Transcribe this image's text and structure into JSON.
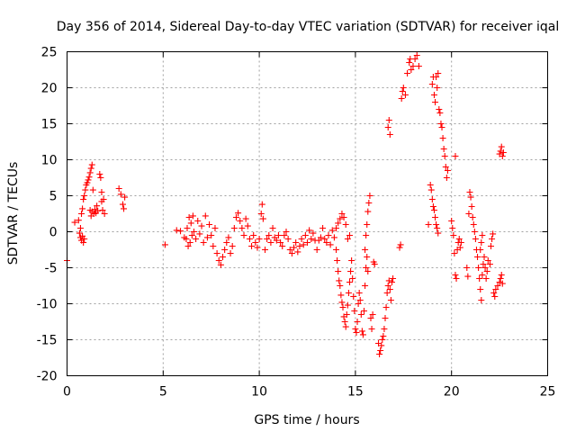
{
  "chart_data": {
    "type": "scatter",
    "title": "Day 356 of 2014, Sidereal Day-to-day VTEC variation (SDTVAR) for receiver iqal",
    "xlabel": "GPS time / hours",
    "ylabel": "SDTVAR / TECUs",
    "xlim": [
      0,
      25
    ],
    "ylim": [
      -20,
      25
    ],
    "x_ticks": [
      0,
      5,
      10,
      15,
      20,
      25
    ],
    "x_tick_labels": [
      "0",
      "5",
      "10",
      "15",
      "20",
      "25"
    ],
    "y_ticks": [
      -20,
      -15,
      -10,
      -5,
      0,
      5,
      10,
      15,
      20,
      25
    ],
    "y_tick_labels": [
      "-20",
      "-15",
      "-10",
      "-5",
      "0",
      "5",
      "10",
      "15",
      "20",
      "25"
    ],
    "grid": true,
    "marker": "+",
    "color": "#ff0000",
    "series": [
      {
        "name": "SDTVAR",
        "points": [
          [
            0.0,
            -4.0
          ],
          [
            0.4,
            1.3
          ],
          [
            0.6,
            1.6
          ],
          [
            0.65,
            -0.2
          ],
          [
            0.7,
            -0.8
          ],
          [
            0.75,
            -1.2
          ],
          [
            0.8,
            -0.6
          ],
          [
            0.85,
            -1.5
          ],
          [
            0.9,
            -1.0
          ],
          [
            0.7,
            0.5
          ],
          [
            0.75,
            2.5
          ],
          [
            0.8,
            3.2
          ],
          [
            0.85,
            4.5
          ],
          [
            0.9,
            5.0
          ],
          [
            0.95,
            5.8
          ],
          [
            1.0,
            6.5
          ],
          [
            1.05,
            6.8
          ],
          [
            1.1,
            7.2
          ],
          [
            1.15,
            7.6
          ],
          [
            1.2,
            8.2
          ],
          [
            1.25,
            8.8
          ],
          [
            1.3,
            9.3
          ],
          [
            1.2,
            3.0
          ],
          [
            1.25,
            2.2
          ],
          [
            1.3,
            2.8
          ],
          [
            1.35,
            5.8
          ],
          [
            1.4,
            2.5
          ],
          [
            1.45,
            3.1
          ],
          [
            1.5,
            2.6
          ],
          [
            1.55,
            3.6
          ],
          [
            1.6,
            2.9
          ],
          [
            1.7,
            8.0
          ],
          [
            1.75,
            7.5
          ],
          [
            1.8,
            5.5
          ],
          [
            1.8,
            4.2
          ],
          [
            1.85,
            3.0
          ],
          [
            1.9,
            4.5
          ],
          [
            1.95,
            2.5
          ],
          [
            2.7,
            6.0
          ],
          [
            2.8,
            5.2
          ],
          [
            2.9,
            3.8
          ],
          [
            2.95,
            3.2
          ],
          [
            3.0,
            4.8
          ],
          [
            5.1,
            -1.8
          ],
          [
            5.7,
            0.2
          ],
          [
            5.9,
            0.1
          ],
          [
            6.1,
            -0.8
          ],
          [
            6.2,
            -1.0
          ],
          [
            6.25,
            0.5
          ],
          [
            6.3,
            -2.0
          ],
          [
            6.35,
            2.0
          ],
          [
            6.4,
            -1.5
          ],
          [
            6.45,
            1.2
          ],
          [
            6.5,
            -0.5
          ],
          [
            6.55,
            2.2
          ],
          [
            6.6,
            0.0
          ],
          [
            6.7,
            -1.0
          ],
          [
            6.8,
            1.5
          ],
          [
            6.9,
            -0.3
          ],
          [
            7.0,
            0.8
          ],
          [
            7.1,
            -1.5
          ],
          [
            7.2,
            2.2
          ],
          [
            7.3,
            -0.8
          ],
          [
            7.4,
            1.0
          ],
          [
            7.5,
            -0.5
          ],
          [
            7.6,
            -2.0
          ],
          [
            7.7,
            0.5
          ],
          [
            7.8,
            -3.0
          ],
          [
            7.9,
            -4.0
          ],
          [
            8.0,
            -4.6
          ],
          [
            8.1,
            -3.5
          ],
          [
            8.2,
            -2.5
          ],
          [
            8.3,
            -1.5
          ],
          [
            8.4,
            -0.8
          ],
          [
            8.5,
            -3.0
          ],
          [
            8.6,
            -2.0
          ],
          [
            8.7,
            0.5
          ],
          [
            8.8,
            2.0
          ],
          [
            8.9,
            2.6
          ],
          [
            9.0,
            1.5
          ],
          [
            9.1,
            0.5
          ],
          [
            9.2,
            -0.5
          ],
          [
            9.3,
            1.8
          ],
          [
            9.4,
            0.8
          ],
          [
            9.5,
            -1.0
          ],
          [
            9.6,
            -2.0
          ],
          [
            9.7,
            -0.5
          ],
          [
            9.8,
            -1.5
          ],
          [
            9.9,
            -2.2
          ],
          [
            10.0,
            -1.0
          ],
          [
            10.1,
            2.5
          ],
          [
            10.15,
            3.8
          ],
          [
            10.2,
            1.8
          ],
          [
            10.3,
            -2.5
          ],
          [
            10.4,
            -1.0
          ],
          [
            10.5,
            -0.5
          ],
          [
            10.6,
            -1.5
          ],
          [
            10.7,
            0.5
          ],
          [
            10.8,
            -0.8
          ],
          [
            10.9,
            -1.2
          ],
          [
            11.0,
            -0.5
          ],
          [
            11.1,
            -1.5
          ],
          [
            11.2,
            -2.0
          ],
          [
            11.3,
            -0.5
          ],
          [
            11.4,
            0.0
          ],
          [
            11.5,
            -1.0
          ],
          [
            11.6,
            -2.5
          ],
          [
            11.7,
            -3.0
          ],
          [
            11.8,
            -2.2
          ],
          [
            11.9,
            -1.5
          ],
          [
            12.0,
            -2.8
          ],
          [
            12.1,
            -2.0
          ],
          [
            12.2,
            -1.0
          ],
          [
            12.3,
            -1.8
          ],
          [
            12.4,
            -0.5
          ],
          [
            12.5,
            -1.5
          ],
          [
            12.6,
            0.2
          ],
          [
            12.7,
            -1.0
          ],
          [
            12.8,
            -0.2
          ],
          [
            12.9,
            -1.2
          ],
          [
            13.0,
            -2.5
          ],
          [
            13.1,
            -1.2
          ],
          [
            13.2,
            -0.8
          ],
          [
            13.3,
            0.5
          ],
          [
            13.4,
            -1.0
          ],
          [
            13.5,
            -1.5
          ],
          [
            13.6,
            -0.5
          ],
          [
            13.7,
            -1.8
          ],
          [
            13.8,
            0.2
          ],
          [
            13.9,
            -0.8
          ],
          [
            14.0,
            0.5
          ],
          [
            14.1,
            1.2
          ],
          [
            14.2,
            1.8
          ],
          [
            14.3,
            2.5
          ],
          [
            14.4,
            2.0
          ],
          [
            14.5,
            1.0
          ],
          [
            14.6,
            -1.0
          ],
          [
            14.7,
            -0.5
          ],
          [
            14.0,
            -2.5
          ],
          [
            14.05,
            -4.0
          ],
          [
            14.1,
            -5.5
          ],
          [
            14.15,
            -6.8
          ],
          [
            14.2,
            -7.5
          ],
          [
            14.25,
            -8.8
          ],
          [
            14.3,
            -9.8
          ],
          [
            14.35,
            -10.5
          ],
          [
            14.4,
            -11.8
          ],
          [
            14.45,
            -12.5
          ],
          [
            14.5,
            -13.2
          ],
          [
            14.55,
            -11.5
          ],
          [
            14.6,
            -10.2
          ],
          [
            14.65,
            -8.5
          ],
          [
            14.7,
            -7.0
          ],
          [
            14.75,
            -5.5
          ],
          [
            14.8,
            -4.0
          ],
          [
            14.85,
            -6.5
          ],
          [
            14.9,
            -9.0
          ],
          [
            14.95,
            -11.0
          ],
          [
            15.0,
            -13.5
          ],
          [
            15.05,
            -14.0
          ],
          [
            15.1,
            -12.5
          ],
          [
            15.15,
            -10.0
          ],
          [
            15.2,
            -8.5
          ],
          [
            15.25,
            -9.5
          ],
          [
            15.3,
            -11.5
          ],
          [
            15.35,
            -13.8
          ],
          [
            15.4,
            -14.3
          ],
          [
            15.45,
            -11.0
          ],
          [
            15.5,
            -7.5
          ],
          [
            15.55,
            -5.0
          ],
          [
            15.6,
            -3.5
          ],
          [
            15.65,
            -5.5
          ],
          [
            15.5,
            -2.5
          ],
          [
            15.55,
            -0.5
          ],
          [
            15.6,
            1.0
          ],
          [
            15.65,
            2.8
          ],
          [
            15.7,
            4.0
          ],
          [
            15.75,
            5.0
          ],
          [
            15.8,
            -12.0
          ],
          [
            15.85,
            -13.5
          ],
          [
            15.9,
            -11.5
          ],
          [
            15.95,
            -4.2
          ],
          [
            16.0,
            -4.5
          ],
          [
            16.2,
            -15.5
          ],
          [
            16.25,
            -17.0
          ],
          [
            16.3,
            -16.5
          ],
          [
            16.35,
            -15.8
          ],
          [
            16.4,
            -15.0
          ],
          [
            16.45,
            -14.5
          ],
          [
            16.5,
            -13.5
          ],
          [
            16.55,
            -12.0
          ],
          [
            16.6,
            -10.5
          ],
          [
            16.65,
            -8.5
          ],
          [
            16.7,
            -7.5
          ],
          [
            16.75,
            -6.8
          ],
          [
            16.8,
            -8.0
          ],
          [
            16.85,
            -9.5
          ],
          [
            16.9,
            -7.0
          ],
          [
            16.95,
            -6.5
          ],
          [
            16.7,
            14.5
          ],
          [
            16.75,
            15.5
          ],
          [
            16.8,
            13.5
          ],
          [
            17.3,
            -2.2
          ],
          [
            17.35,
            -1.8
          ],
          [
            17.4,
            18.5
          ],
          [
            17.45,
            19.5
          ],
          [
            17.5,
            20.0
          ],
          [
            17.6,
            19.0
          ],
          [
            17.7,
            22.0
          ],
          [
            17.8,
            23.5
          ],
          [
            17.85,
            24.0
          ],
          [
            17.9,
            22.5
          ],
          [
            18.0,
            23.0
          ],
          [
            18.1,
            24.0
          ],
          [
            18.2,
            24.5
          ],
          [
            18.3,
            23.0
          ],
          [
            18.8,
            1.0
          ],
          [
            19.0,
            20.5
          ],
          [
            19.05,
            21.5
          ],
          [
            19.1,
            19.0
          ],
          [
            19.15,
            18.0
          ],
          [
            19.2,
            21.5
          ],
          [
            19.25,
            20.0
          ],
          [
            19.3,
            22.0
          ],
          [
            19.35,
            17.0
          ],
          [
            19.4,
            16.5
          ],
          [
            19.45,
            15.0
          ],
          [
            19.5,
            14.5
          ],
          [
            19.55,
            13.0
          ],
          [
            19.6,
            11.5
          ],
          [
            19.65,
            10.5
          ],
          [
            19.7,
            9.0
          ],
          [
            19.75,
            7.5
          ],
          [
            19.8,
            8.5
          ],
          [
            18.9,
            6.5
          ],
          [
            18.95,
            5.8
          ],
          [
            19.0,
            4.5
          ],
          [
            19.05,
            3.5
          ],
          [
            19.1,
            3.0
          ],
          [
            19.15,
            2.0
          ],
          [
            19.2,
            1.0
          ],
          [
            19.25,
            0.5
          ],
          [
            19.3,
            -0.2
          ],
          [
            20.0,
            1.5
          ],
          [
            20.05,
            0.5
          ],
          [
            20.1,
            -0.5
          ],
          [
            20.15,
            -3.0
          ],
          [
            20.2,
            -6.0
          ],
          [
            20.25,
            -6.5
          ],
          [
            20.3,
            -2.5
          ],
          [
            20.35,
            -1.5
          ],
          [
            20.4,
            -1.0
          ],
          [
            20.45,
            -2.2
          ],
          [
            20.5,
            -1.5
          ],
          [
            20.2,
            10.5
          ],
          [
            20.8,
            -5.0
          ],
          [
            20.85,
            -6.2
          ],
          [
            20.9,
            2.5
          ],
          [
            20.95,
            5.5
          ],
          [
            21.0,
            4.8
          ],
          [
            21.05,
            3.5
          ],
          [
            21.1,
            2.0
          ],
          [
            21.15,
            1.0
          ],
          [
            21.2,
            0.0
          ],
          [
            21.25,
            -1.0
          ],
          [
            21.3,
            -2.5
          ],
          [
            21.35,
            -3.5
          ],
          [
            21.4,
            -5.0
          ],
          [
            21.45,
            -6.5
          ],
          [
            21.5,
            -8.0
          ],
          [
            21.55,
            -9.5
          ],
          [
            21.6,
            -6.0
          ],
          [
            21.65,
            -4.5
          ],
          [
            21.7,
            -3.5
          ],
          [
            21.75,
            -5.0
          ],
          [
            21.8,
            -6.5
          ],
          [
            21.85,
            -5.5
          ],
          [
            21.9,
            -4.0
          ],
          [
            21.5,
            -2.5
          ],
          [
            21.55,
            -1.5
          ],
          [
            21.6,
            -0.5
          ],
          [
            22.0,
            -4.5
          ],
          [
            22.05,
            -2.0
          ],
          [
            22.1,
            -1.0
          ],
          [
            22.15,
            -0.3
          ],
          [
            22.2,
            -8.5
          ],
          [
            22.25,
            -9.0
          ],
          [
            22.3,
            -8.0
          ],
          [
            22.4,
            -7.5
          ],
          [
            22.5,
            -7.0
          ],
          [
            22.55,
            -6.5
          ],
          [
            22.6,
            -6.0
          ],
          [
            22.65,
            -7.2
          ],
          [
            22.5,
            10.8
          ],
          [
            22.55,
            11.2
          ],
          [
            22.6,
            11.8
          ],
          [
            22.65,
            10.5
          ],
          [
            22.7,
            11.0
          ]
        ]
      }
    ]
  }
}
